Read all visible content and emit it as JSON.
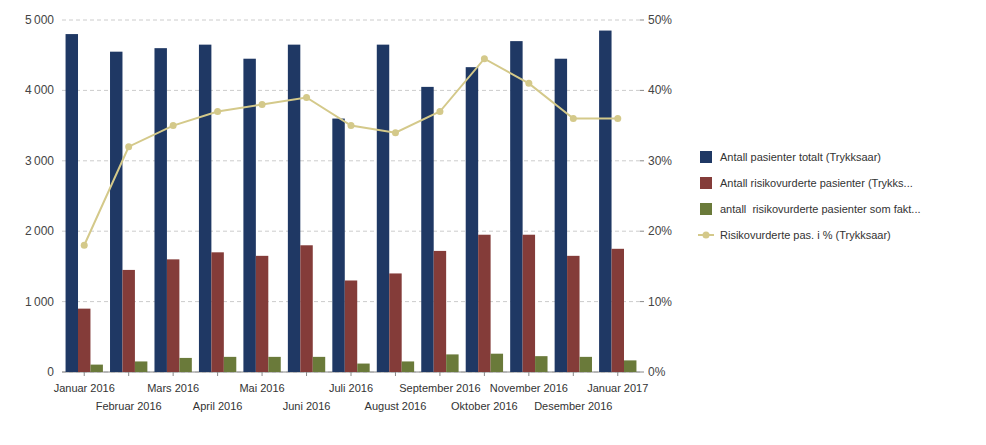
{
  "chart_data": {
    "type": "bar",
    "categories": [
      "Januar 2016",
      "Februar 2016",
      "Mars 2016",
      "April 2016",
      "Mai 2016",
      "Juni 2016",
      "Juli 2016",
      "August 2016",
      "September 2016",
      "Oktober 2016",
      "November 2016",
      "Desember 2016",
      "Januar 2017"
    ],
    "series": [
      {
        "name": "Antall pasienter totalt (Trykksaar)",
        "color": "#1f3864",
        "type": "bar",
        "values": [
          4800,
          4550,
          4600,
          4650,
          4450,
          4650,
          3600,
          4650,
          4050,
          4330,
          4700,
          4450,
          4850
        ]
      },
      {
        "name": "Antall risikovurderte pasienter (Trykks...",
        "color": "#843c39",
        "type": "bar",
        "values": [
          900,
          1450,
          1600,
          1700,
          1650,
          1800,
          1300,
          1400,
          1720,
          1950,
          1950,
          1650,
          1750
        ]
      },
      {
        "name": "antall  risikovurderte pasienter som fakt...",
        "color": "#6a7a3a",
        "type": "bar",
        "values": [
          105,
          150,
          200,
          215,
          215,
          215,
          120,
          150,
          250,
          260,
          225,
          215,
          165
        ]
      },
      {
        "name": "Risikovurderte pas. i % (Trykksaar)",
        "color": "#d4c98a",
        "type": "line",
        "axis": "y2",
        "marker": "circle",
        "values": [
          0.18,
          0.32,
          0.35,
          0.37,
          0.38,
          0.39,
          0.35,
          0.34,
          0.37,
          0.445,
          0.41,
          0.36,
          0.36
        ]
      }
    ],
    "ylim": [
      0,
      5000
    ],
    "yticks": [
      0,
      {
        "value": 1000,
        "label": "1 000"
      },
      {
        "value": 2000,
        "label": "2 000"
      },
      {
        "value": 3000,
        "label": "3 000"
      },
      {
        "value": 4000,
        "label": "4 000"
      },
      {
        "value": 5000,
        "label": "5 000"
      }
    ],
    "y2lim": [
      0,
      0.5
    ],
    "y2ticks": [
      {
        "value": 0.0,
        "label": "0%"
      },
      {
        "value": 0.1,
        "label": "10%"
      },
      {
        "value": 0.2,
        "label": "20%"
      },
      {
        "value": 0.3,
        "label": "30%"
      },
      {
        "value": 0.4,
        "label": "40%"
      },
      {
        "value": 0.5,
        "label": "50%"
      }
    ],
    "grid": true,
    "legend": "right"
  }
}
